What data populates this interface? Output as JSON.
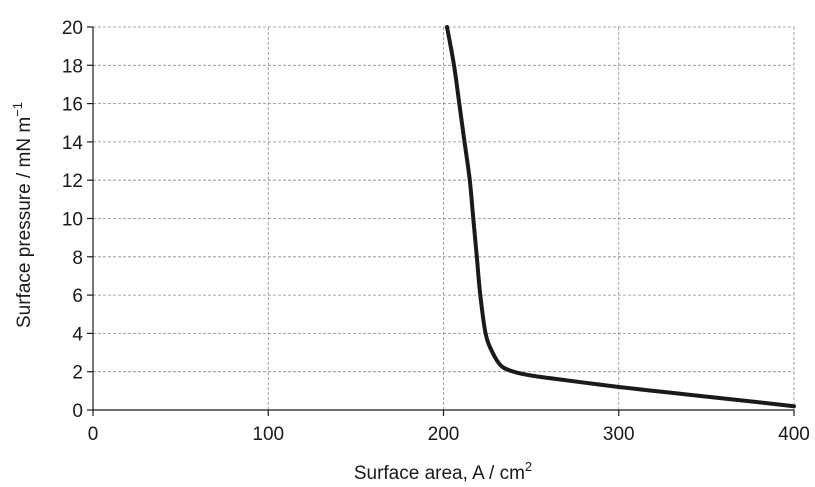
{
  "chart_data": {
    "type": "line",
    "xlabel_text": "Surface area, A / cm",
    "xlabel_sup": "2",
    "ylabel_text": "Surface pressure / mN m",
    "ylabel_sup": "−1",
    "xlim": [
      0,
      400
    ],
    "ylim": [
      0,
      20
    ],
    "xticks": [
      0,
      100,
      200,
      300,
      400
    ],
    "yticks": [
      0,
      2,
      4,
      6,
      8,
      10,
      12,
      14,
      16,
      18,
      20
    ],
    "grid": true,
    "series": [
      {
        "color": "#1a1a1a",
        "points": [
          [
            202,
            20
          ],
          [
            206,
            18
          ],
          [
            209,
            16
          ],
          [
            212,
            14
          ],
          [
            215,
            12
          ],
          [
            217,
            10
          ],
          [
            219,
            8
          ],
          [
            221,
            6
          ],
          [
            224,
            4
          ],
          [
            228,
            3
          ],
          [
            233,
            2.3
          ],
          [
            240,
            2
          ],
          [
            250,
            1.8
          ],
          [
            270,
            1.55
          ],
          [
            300,
            1.2
          ],
          [
            330,
            0.9
          ],
          [
            360,
            0.6
          ],
          [
            400,
            0.2
          ]
        ]
      }
    ]
  }
}
